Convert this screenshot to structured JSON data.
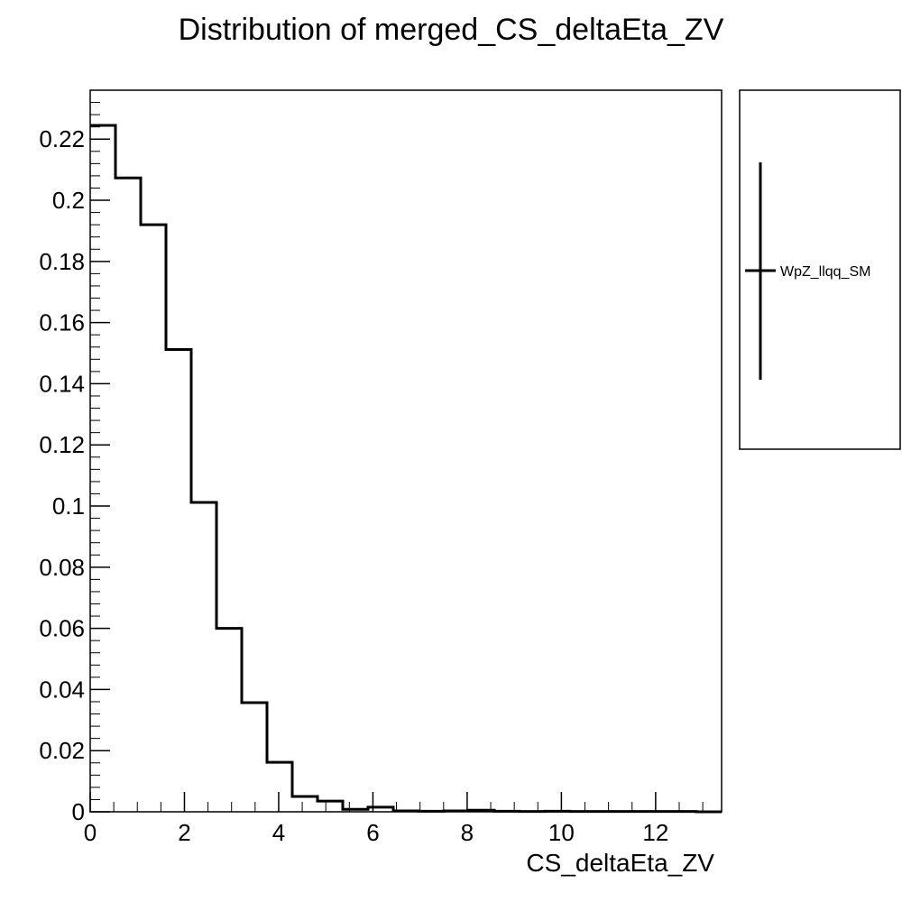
{
  "chart_data": {
    "type": "histogram",
    "title": "Distribution of merged_CS_deltaEta_ZV",
    "xlabel": "CS_deltaEta_ZV",
    "ylabel": "",
    "xlim": [
      0,
      13.4
    ],
    "ylim": [
      0,
      0.236
    ],
    "x_ticks": [
      0,
      2,
      4,
      6,
      8,
      10,
      12
    ],
    "x_tick_labels": [
      "0",
      "2",
      "4",
      "6",
      "8",
      "10",
      "12"
    ],
    "y_ticks": [
      0,
      0.02,
      0.04,
      0.06,
      0.08,
      0.1,
      0.12,
      0.14,
      0.16,
      0.18,
      0.2,
      0.22
    ],
    "y_tick_labels": [
      "0",
      "0.02",
      "0.04",
      "0.06",
      "0.08",
      "0.1",
      "0.12",
      "0.14",
      "0.16",
      "0.18",
      "0.2",
      "0.22"
    ],
    "bin_width": 0.536,
    "bin_edges": [
      0,
      0.536,
      1.072,
      1.608,
      2.144,
      2.68,
      3.216,
      3.752,
      4.288,
      4.824,
      5.36,
      5.896,
      6.432,
      6.968,
      7.504,
      8.04,
      8.576,
      9.112,
      9.648,
      10.184,
      10.72,
      11.256,
      11.792,
      12.328,
      12.864,
      13.4
    ],
    "series": [
      {
        "name": "WpZ_llqq_SM",
        "color": "#000000",
        "values": [
          0.2245,
          0.2073,
          0.192,
          0.1512,
          0.1012,
          0.06,
          0.0357,
          0.0162,
          0.005,
          0.0035,
          0.0008,
          0.0015,
          0.0003,
          0.0002,
          0.0003,
          0.0005,
          0.0002,
          0.0001,
          0.0002,
          0.0001,
          0.0001,
          0.0001,
          0.0001,
          0.0001,
          0.0
        ]
      }
    ],
    "legend": {
      "position": "right",
      "entries": [
        "WpZ_llqq_SM"
      ]
    },
    "grid": false
  }
}
